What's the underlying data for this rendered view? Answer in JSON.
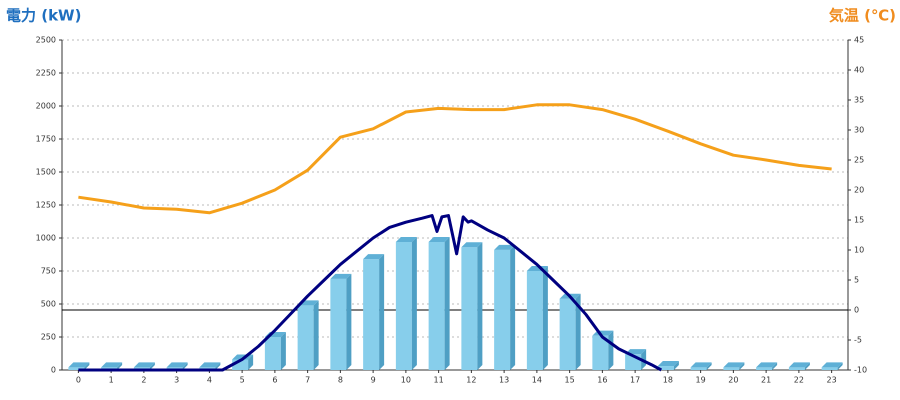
{
  "chart_data": {
    "type": "bar-line",
    "y_axis_label": "電力 (kW)",
    "y2_axis_label": "気温 (℃)",
    "x": [
      0,
      1,
      2,
      3,
      4,
      5,
      6,
      7,
      8,
      9,
      10,
      11,
      12,
      13,
      14,
      15,
      16,
      17,
      18,
      19,
      20,
      21,
      22,
      23
    ],
    "xlim": [
      -0.5,
      23.5
    ],
    "xticks": [
      0,
      1,
      2,
      3,
      4,
      5,
      6,
      7,
      8,
      9,
      10,
      11,
      12,
      13,
      14,
      15,
      16,
      17,
      18,
      19,
      20,
      21,
      22,
      23
    ],
    "ylim": [
      0,
      2500
    ],
    "yticks": [
      0,
      250,
      500,
      750,
      1000,
      1250,
      1500,
      1750,
      2000,
      2250,
      2500
    ],
    "y2lim": [
      -10,
      45
    ],
    "y2ticks": [
      -10,
      -5,
      0,
      5,
      10,
      15,
      20,
      25,
      30,
      35,
      40,
      45
    ],
    "grid": true,
    "y2_zero_line": true,
    "series": [
      {
        "kind": "bar",
        "color": "#87ceeb",
        "values": [
          20,
          20,
          20,
          20,
          20,
          80,
          250,
          490,
          690,
          840,
          970,
          970,
          930,
          910,
          750,
          540,
          260,
          120,
          30,
          20,
          20,
          20,
          20,
          20
        ]
      },
      {
        "kind": "line",
        "color": "#000080",
        "x": [
          0,
          4.4,
          5,
          5.5,
          6,
          6.5,
          7,
          7.5,
          8,
          8.5,
          9,
          9.5,
          10,
          10.5,
          10.8,
          10.95,
          11.1,
          11.3,
          11.55,
          11.75,
          11.9,
          12,
          12.5,
          13,
          13.5,
          14,
          14.5,
          15,
          15.5,
          16,
          16.5,
          17,
          17.5,
          17.8
        ],
        "values": [
          0,
          0,
          80,
          180,
          300,
          430,
          560,
          680,
          800,
          900,
          1000,
          1080,
          1120,
          1150,
          1170,
          1050,
          1160,
          1170,
          880,
          1160,
          1120,
          1130,
          1060,
          1000,
          900,
          800,
          680,
          560,
          420,
          250,
          160,
          100,
          40,
          0
        ]
      },
      {
        "kind": "line",
        "axis": "y2",
        "color": "#f5a01a",
        "values": [
          18.8,
          18,
          17,
          16.8,
          16.2,
          17.8,
          20,
          23.3,
          28.8,
          30.2,
          33,
          33.6,
          33.4,
          33.4,
          34.2,
          34.2,
          33.4,
          31.8,
          29.8,
          27.7,
          25.8,
          25,
          24.1,
          23.5
        ]
      }
    ]
  }
}
